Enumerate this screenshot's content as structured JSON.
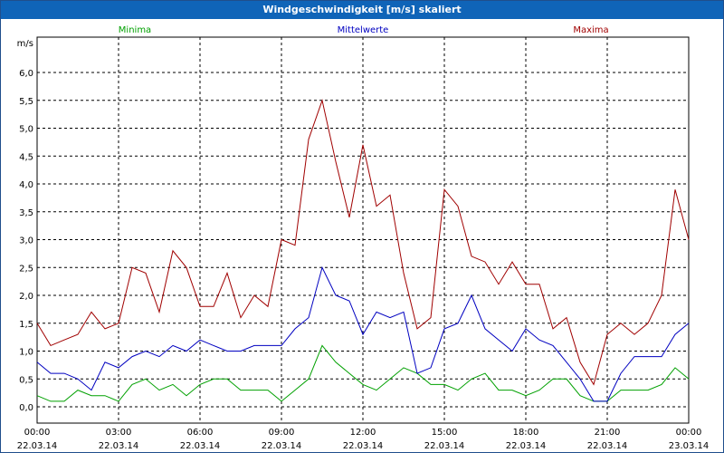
{
  "window": {
    "title": "Windgeschwindigkeit [m/s] skaliert"
  },
  "chart_data": {
    "type": "line",
    "title": "Windgeschwindigkeit [m/s] skaliert",
    "ylabel": "m/s",
    "ylim": [
      0,
      6.5
    ],
    "yticks": [
      "0,0",
      "0,5",
      "1,0",
      "1,5",
      "2,0",
      "2,5",
      "3,0",
      "3,5",
      "4,0",
      "4,5",
      "5,0",
      "5,5",
      "6,0"
    ],
    "xlim_hours": [
      0,
      24
    ],
    "xticks": [
      {
        "time": "00:00",
        "date": "22.03.14"
      },
      {
        "time": "03:00",
        "date": "22.03.14"
      },
      {
        "time": "06:00",
        "date": "22.03.14"
      },
      {
        "time": "09:00",
        "date": "22.03.14"
      },
      {
        "time": "12:00",
        "date": "22.03.14"
      },
      {
        "time": "15:00",
        "date": "22.03.14"
      },
      {
        "time": "18:00",
        "date": "22.03.14"
      },
      {
        "time": "21:00",
        "date": "22.03.14"
      },
      {
        "time": "00:00",
        "date": "23.03.14"
      }
    ],
    "grid": true,
    "x_hours": [
      0,
      0.5,
      1,
      1.5,
      2,
      2.5,
      3,
      3.5,
      4,
      4.5,
      5,
      5.5,
      6,
      6.5,
      7,
      7.5,
      8,
      8.5,
      9,
      9.5,
      10,
      10.5,
      11,
      11.5,
      12,
      12.5,
      13,
      13.5,
      14,
      14.5,
      15,
      15.5,
      16,
      16.5,
      17,
      17.5,
      18,
      18.5,
      19,
      19.5,
      20,
      20.5,
      21,
      21.5,
      22,
      22.5,
      23,
      23.5,
      24
    ],
    "series": [
      {
        "name": "Minima",
        "color": "#00a000",
        "values": [
          0.2,
          0.1,
          0.1,
          0.3,
          0.2,
          0.2,
          0.1,
          0.4,
          0.5,
          0.3,
          0.4,
          0.2,
          0.4,
          0.5,
          0.5,
          0.3,
          0.3,
          0.3,
          0.1,
          0.3,
          0.5,
          1.1,
          0.8,
          0.6,
          0.4,
          0.3,
          0.5,
          0.7,
          0.6,
          0.4,
          0.4,
          0.3,
          0.5,
          0.6,
          0.3,
          0.3,
          0.2,
          0.3,
          0.5,
          0.5,
          0.2,
          0.1,
          0.1,
          0.3,
          0.3,
          0.3,
          0.4,
          0.7,
          0.5
        ]
      },
      {
        "name": "Mittelwerte",
        "color": "#0000c0",
        "values": [
          0.8,
          0.6,
          0.6,
          0.5,
          0.3,
          0.8,
          0.7,
          0.9,
          1.0,
          0.9,
          1.1,
          1.0,
          1.2,
          1.1,
          1.0,
          1.0,
          1.1,
          1.1,
          1.1,
          1.4,
          1.6,
          2.5,
          2.0,
          1.9,
          1.3,
          1.7,
          1.6,
          1.7,
          0.6,
          0.7,
          1.4,
          1.5,
          2.0,
          1.4,
          1.2,
          1.0,
          1.4,
          1.2,
          1.1,
          0.8,
          0.5,
          0.1,
          0.1,
          0.6,
          0.9,
          0.9,
          0.9,
          1.3,
          1.5
        ]
      },
      {
        "name": "Maxima",
        "color": "#a00000",
        "values": [
          1.5,
          1.1,
          1.2,
          1.3,
          1.7,
          1.4,
          1.5,
          2.5,
          2.4,
          1.7,
          2.8,
          2.5,
          1.8,
          1.8,
          2.4,
          1.6,
          2.0,
          1.8,
          3.0,
          2.9,
          4.8,
          5.5,
          4.4,
          3.4,
          4.7,
          3.6,
          3.8,
          2.4,
          1.4,
          1.6,
          3.9,
          3.6,
          2.7,
          2.6,
          2.2,
          2.6,
          2.2,
          2.2,
          1.4,
          1.6,
          0.8,
          0.4,
          1.3,
          1.5,
          1.3,
          1.5,
          2.0,
          3.9,
          3.0
        ]
      }
    ]
  }
}
